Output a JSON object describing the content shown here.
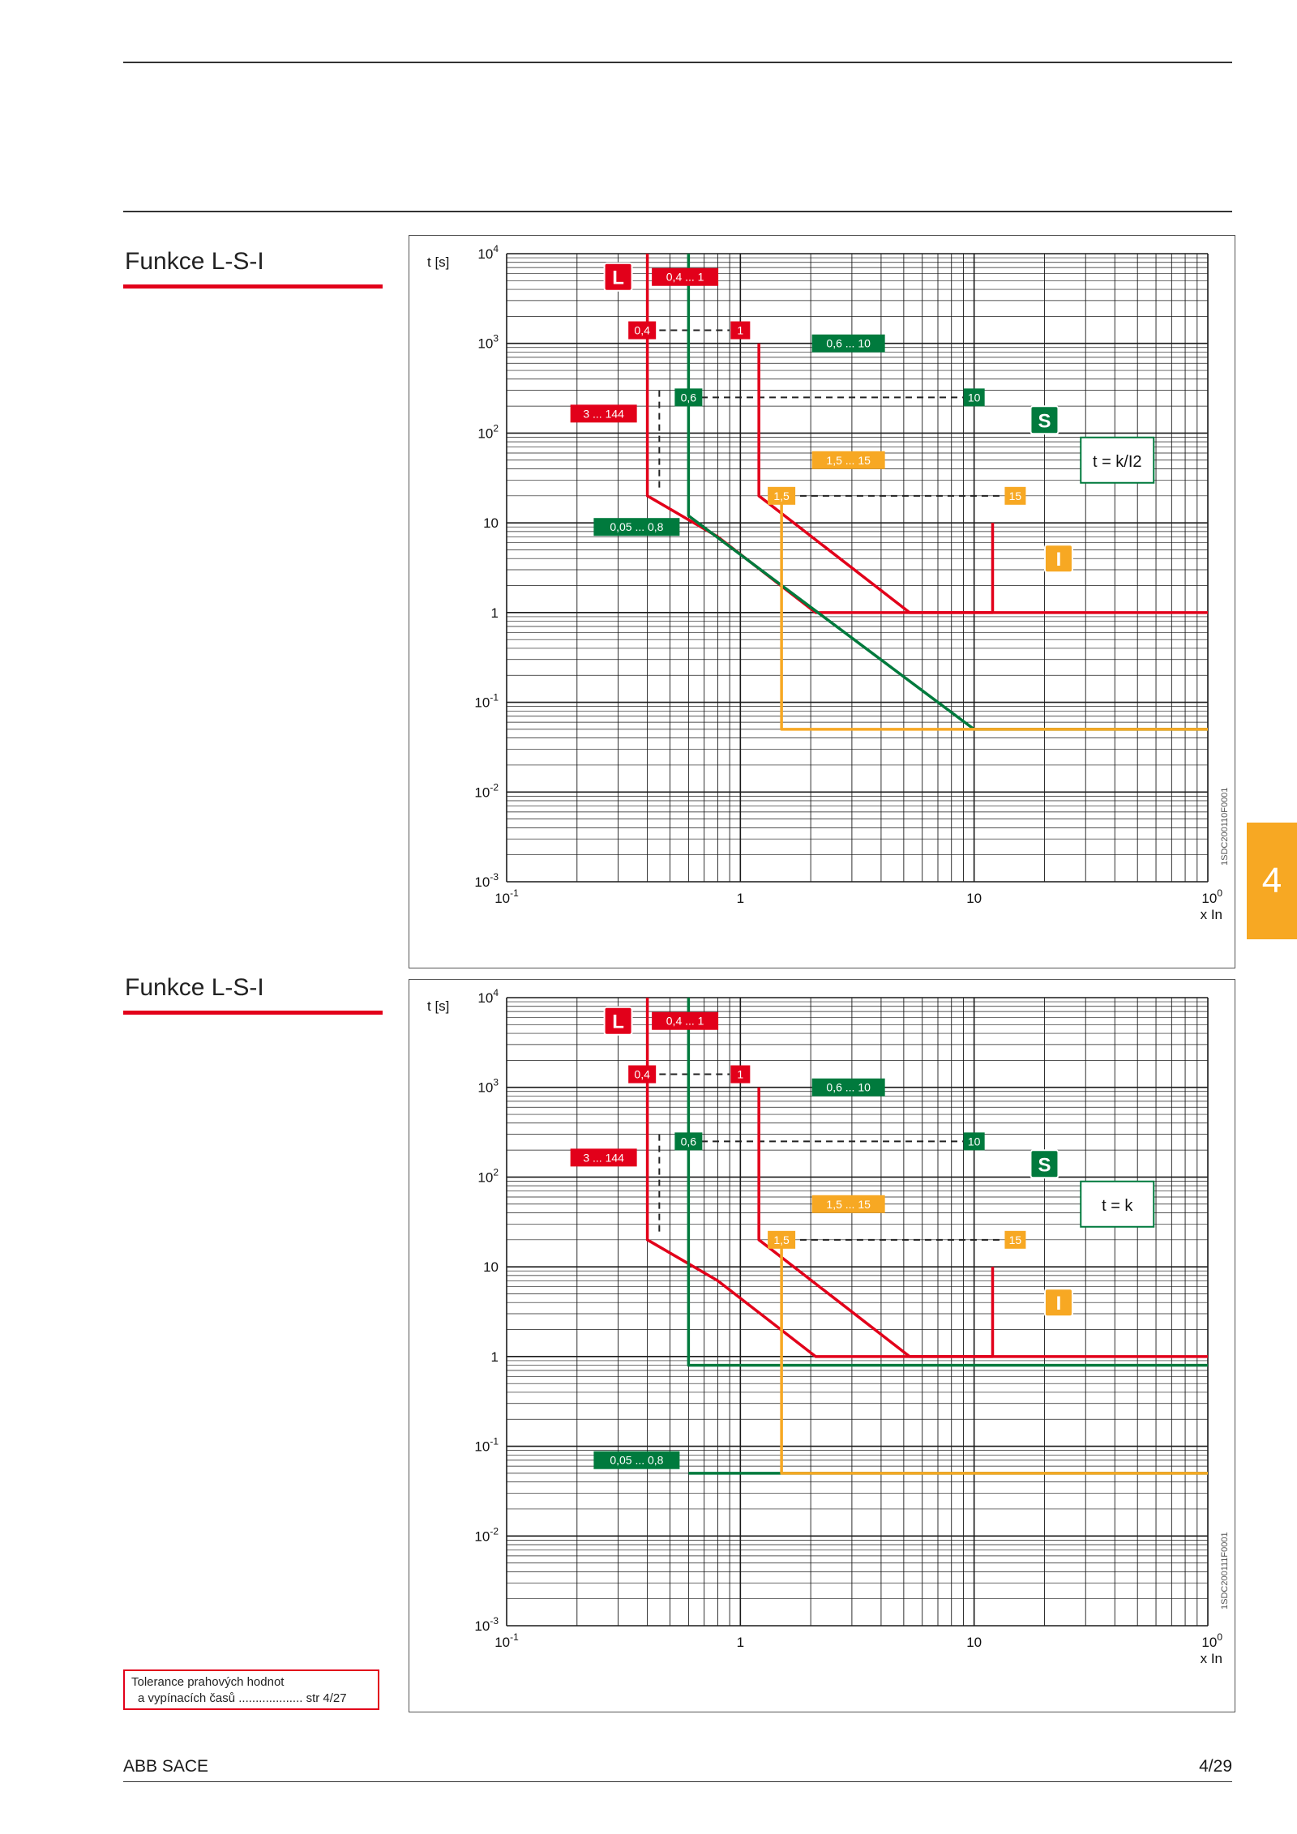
{
  "page": {
    "side_tab": "4",
    "note_line1": "Tolerance prahových hodnot",
    "note_line2": "a vypínacích časů  ................... str 4/27",
    "footer_left": "ABB SACE",
    "footer_right": "4/29"
  },
  "colors": {
    "red": "#e2001a",
    "green": "#007a3d",
    "orange": "#f7a823",
    "grid": "#1a1a1a"
  },
  "chart_data": [
    {
      "type": "line",
      "section_title": "Funkce L-S-I",
      "ylabel": "t [s]",
      "xlabel": "x In",
      "xscale": "log",
      "yscale": "log",
      "xlim": [
        0.1,
        100
      ],
      "ylim": [
        0.001,
        10000
      ],
      "x_ticks": [
        "10-1",
        "1",
        "10",
        "100"
      ],
      "y_ticks": [
        "10-3",
        "10-2",
        "10-1",
        "1",
        "10",
        "102",
        "103",
        "104"
      ],
      "code": "1SDC200110F0001",
      "formula": "t = k/I2",
      "series": [
        {
          "color": "red",
          "points": [
            [
              0.4,
              10000
            ],
            [
              0.4,
              1000
            ],
            [
              0.4,
              20
            ],
            [
              0.8,
              7
            ],
            [
              2.1,
              1
            ],
            [
              12,
              1
            ],
            [
              12,
              10
            ],
            [
              1.2,
              1000
            ],
            [
              1.2,
              20
            ],
            [
              5.3,
              1
            ],
            [
              100,
              1
            ]
          ]
        },
        {
          "color": "green",
          "points": [
            [
              0.6,
              10000
            ],
            [
              0.6,
              250
            ],
            [
              0.6,
              12
            ],
            [
              10,
              0.05
            ],
            [
              100,
              0.05
            ]
          ]
        },
        {
          "color": "orange",
          "points": [
            [
              1.5,
              20
            ],
            [
              1.5,
              0.05
            ],
            [
              15,
              0.05
            ],
            [
              100,
              0.05
            ]
          ]
        }
      ],
      "annotations": [
        {
          "text": "L",
          "color": "red"
        },
        {
          "text": "0,4 ... 1",
          "color": "red"
        },
        {
          "text": "0,4",
          "color": "red"
        },
        {
          "text": "1",
          "color": "red"
        },
        {
          "text": "3 ... 144",
          "color": "red"
        },
        {
          "text": "0,6 ... 10",
          "color": "green"
        },
        {
          "text": "0,6",
          "color": "green"
        },
        {
          "text": "10",
          "color": "green"
        },
        {
          "text": "S",
          "color": "green"
        },
        {
          "text": "0,05 ... 0,8",
          "color": "green"
        },
        {
          "text": "1,5 ... 15",
          "color": "orange"
        },
        {
          "text": "1,5",
          "color": "orange"
        },
        {
          "text": "15",
          "color": "orange"
        },
        {
          "text": "I",
          "color": "orange"
        }
      ]
    },
    {
      "type": "line",
      "section_title": "Funkce L-S-I",
      "ylabel": "t [s]",
      "xlabel": "x In",
      "xscale": "log",
      "yscale": "log",
      "xlim": [
        0.1,
        100
      ],
      "ylim": [
        0.001,
        10000
      ],
      "x_ticks": [
        "10-1",
        "1",
        "10",
        "100"
      ],
      "y_ticks": [
        "10-3",
        "10-2",
        "10-1",
        "1",
        "10",
        "102",
        "103",
        "104"
      ],
      "code": "1SDC200111F0001",
      "formula": "t = k",
      "series": [
        {
          "color": "red",
          "points": [
            [
              0.4,
              10000
            ],
            [
              0.4,
              1000
            ],
            [
              0.4,
              20
            ],
            [
              0.8,
              7
            ],
            [
              2.1,
              1
            ],
            [
              12,
              1
            ],
            [
              12,
              10
            ],
            [
              1.2,
              1000
            ],
            [
              1.2,
              20
            ],
            [
              5.3,
              1
            ],
            [
              100,
              1
            ]
          ]
        },
        {
          "color": "green",
          "points": [
            [
              0.6,
              10000
            ],
            [
              0.6,
              250
            ],
            [
              0.6,
              0.8
            ],
            [
              100,
              0.8
            ],
            [
              0.6,
              0.05
            ],
            [
              100,
              0.05
            ]
          ]
        },
        {
          "color": "orange",
          "points": [
            [
              1.5,
              20
            ],
            [
              1.5,
              0.05
            ],
            [
              15,
              0.05
            ],
            [
              100,
              0.05
            ]
          ]
        }
      ],
      "annotations": [
        {
          "text": "L",
          "color": "red"
        },
        {
          "text": "0,4 ... 1",
          "color": "red"
        },
        {
          "text": "0,4",
          "color": "red"
        },
        {
          "text": "1",
          "color": "red"
        },
        {
          "text": "3 ... 144",
          "color": "red"
        },
        {
          "text": "0,6 ... 10",
          "color": "green"
        },
        {
          "text": "0,6",
          "color": "green"
        },
        {
          "text": "10",
          "color": "green"
        },
        {
          "text": "S",
          "color": "green"
        },
        {
          "text": "0,05 ... 0,8",
          "color": "green"
        },
        {
          "text": "1,5 ... 15",
          "color": "orange"
        },
        {
          "text": "1,5",
          "color": "orange"
        },
        {
          "text": "15",
          "color": "orange"
        },
        {
          "text": "I",
          "color": "orange"
        }
      ]
    }
  ]
}
